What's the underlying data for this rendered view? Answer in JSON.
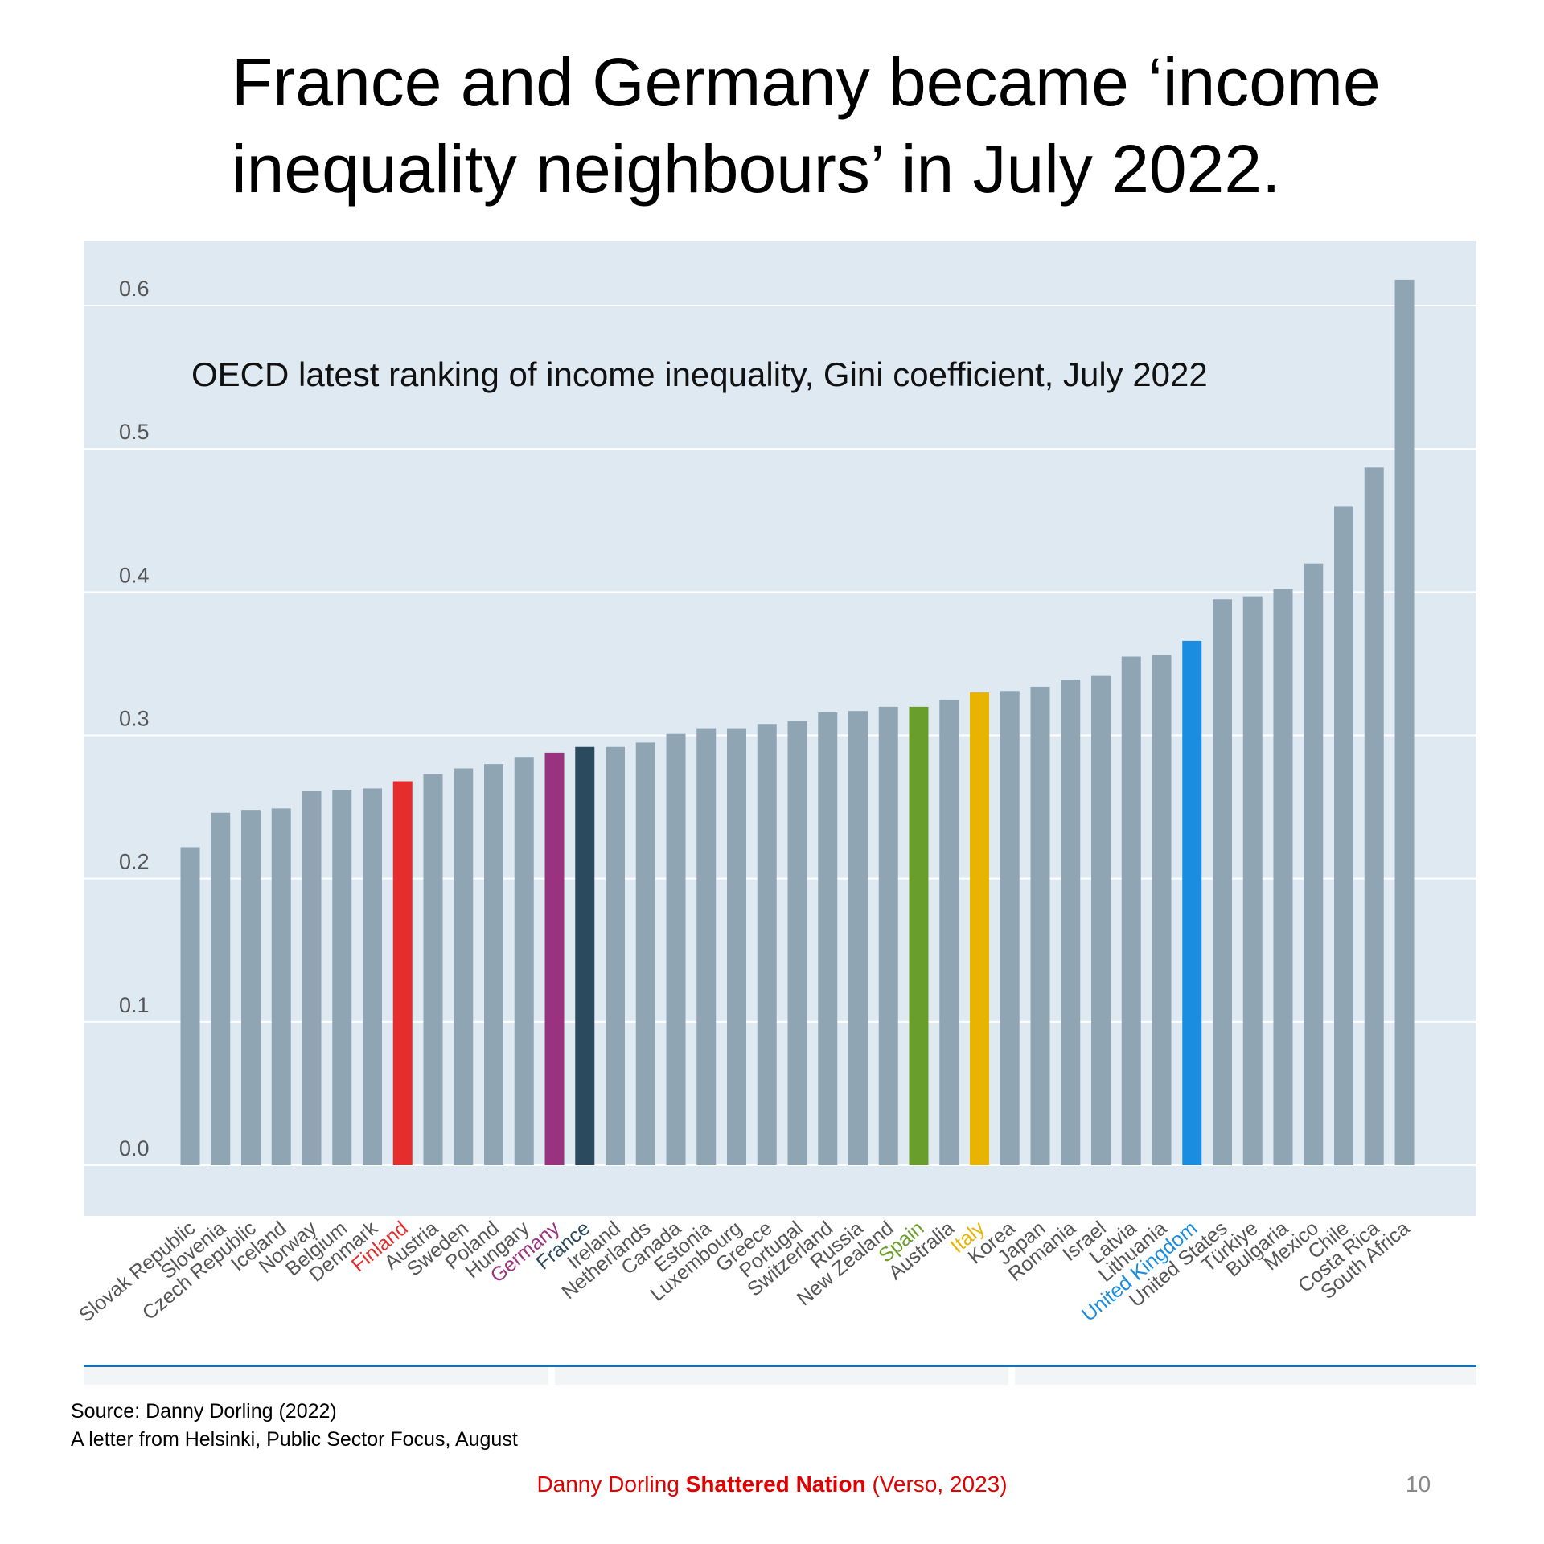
{
  "slide": {
    "title_line1": "France and Germany became ‘income",
    "title_line2": "inequality neighbours’ in July 2022.",
    "source_line1": "Source: Danny Dorling (2022)",
    "source_line2": "A letter from Helsinki, Public Sector Focus, August",
    "footer_author": "Danny Dorling ",
    "footer_book": "Shattered Nation",
    "footer_publisher": " (Verso, 2023)",
    "page_number": "10"
  },
  "chart_data": {
    "type": "bar",
    "title": "OECD latest ranking of income inequality, Gini coefficient, July 2022",
    "xlabel": "",
    "ylabel": "",
    "ylim": [
      0,
      0.6
    ],
    "yticks": [
      "0.0",
      "0.1",
      "0.2",
      "0.3",
      "0.4",
      "0.5",
      "0.6"
    ],
    "grid": true,
    "categories": [
      "Slovak Republic",
      "Slovenia",
      "Czech Republic",
      "Iceland",
      "Norway",
      "Belgium",
      "Denmark",
      "Finland",
      "Austria",
      "Sweden",
      "Poland",
      "Hungary",
      "Germany",
      "France",
      "Ireland",
      "Netherlands",
      "Canada",
      "Estonia",
      "Luxembourg",
      "Greece",
      "Portugal",
      "Switzerland",
      "Russia",
      "New Zealand",
      "Spain",
      "Australia",
      "Italy",
      "Korea",
      "Japan",
      "Romania",
      "Israel",
      "Latvia",
      "Lithuania",
      "United Kingdom",
      "United States",
      "Türkiye",
      "Bulgaria",
      "Mexico",
      "Chile",
      "Costa Rica",
      "South Africa"
    ],
    "values": [
      0.222,
      0.246,
      0.248,
      0.249,
      0.261,
      0.262,
      0.263,
      0.268,
      0.273,
      0.277,
      0.28,
      0.285,
      0.288,
      0.292,
      0.292,
      0.295,
      0.301,
      0.305,
      0.305,
      0.308,
      0.31,
      0.316,
      0.317,
      0.32,
      0.32,
      0.325,
      0.33,
      0.331,
      0.334,
      0.339,
      0.342,
      0.355,
      0.356,
      0.366,
      0.395,
      0.397,
      0.402,
      0.42,
      0.46,
      0.487,
      0.618
    ],
    "colors": {
      "default_bar": "#8fa5b4",
      "plot_background": "#dfe9f1",
      "gridline": "#ffffff",
      "tick_label": "#555555",
      "highlight": {
        "Finland": "#e52d2d",
        "Germany": "#993380",
        "France": "#2b4a5d",
        "Spain": "#6a9e2c",
        "Italy": "#e8b400",
        "United Kingdom": "#1a8de0"
      }
    }
  }
}
